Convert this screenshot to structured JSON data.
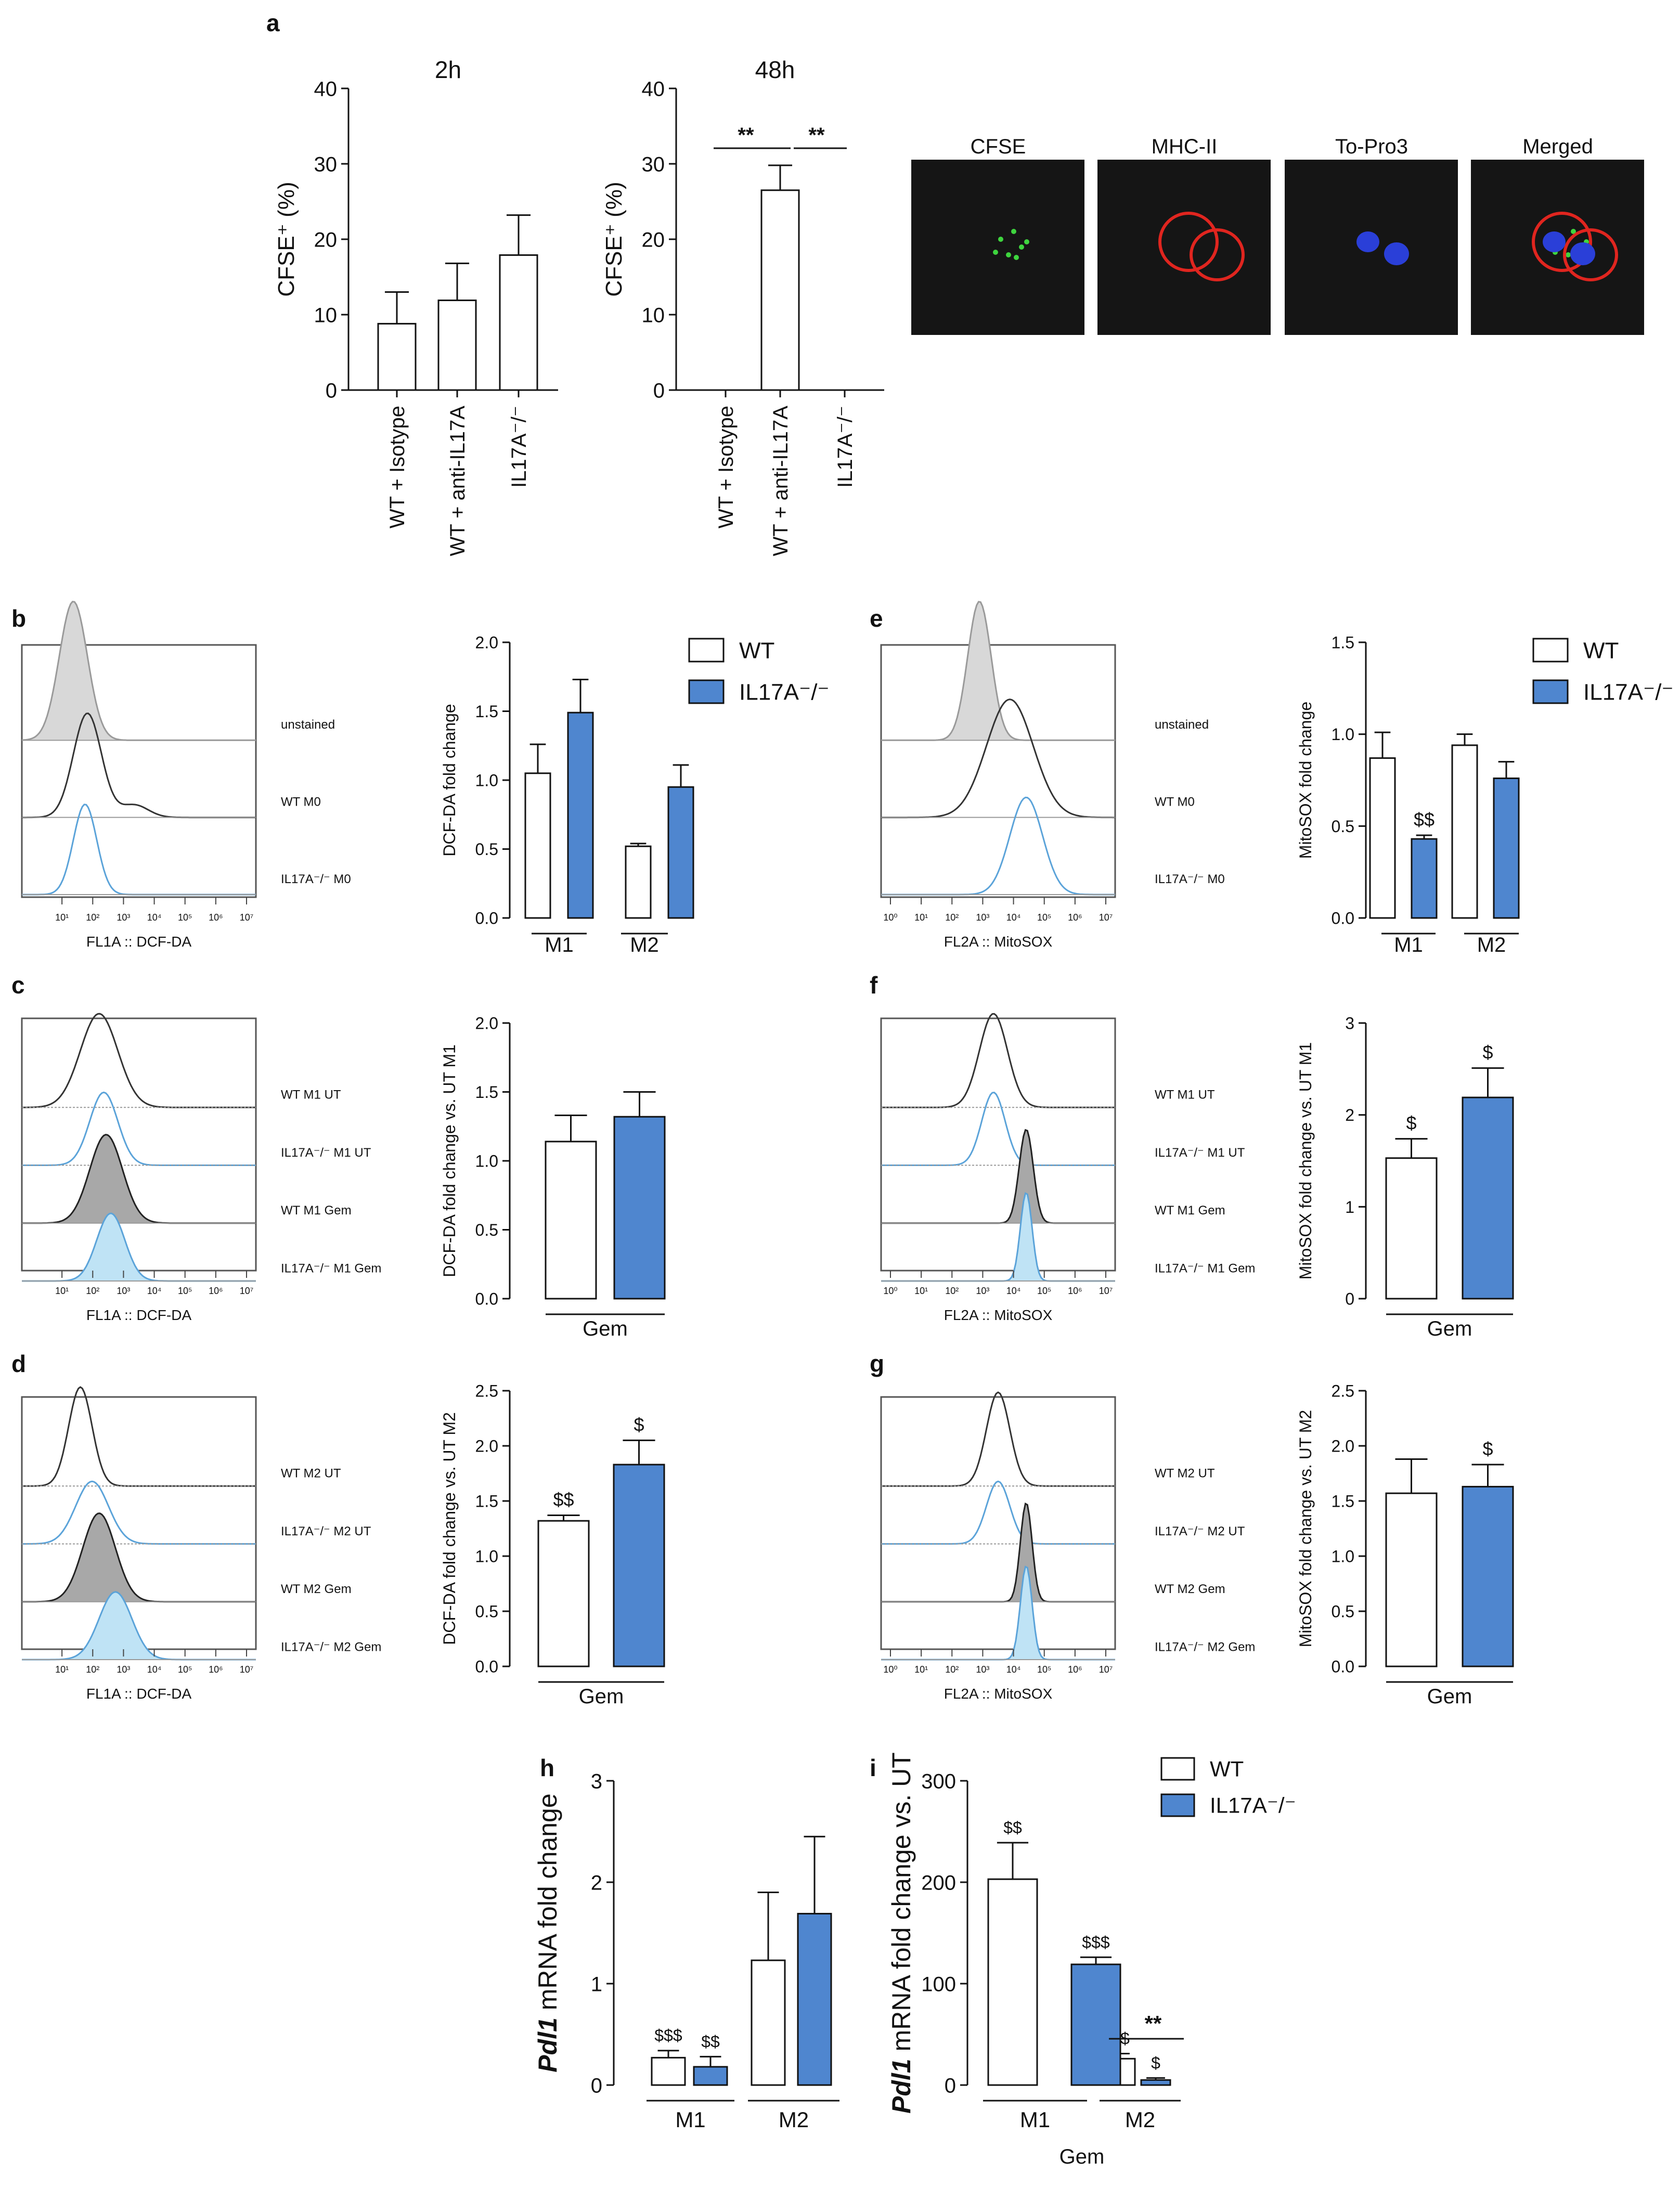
{
  "colors": {
    "wt_fill": "#ffffff",
    "ko_fill": "#4f86cf",
    "ko_line": "#5ba3d9",
    "ko_fill_light": "#bfe3f5",
    "wt_line": "#333333",
    "gray_fill": "#d8d8d8",
    "gray_line": "#9a9a9a",
    "axis": "#111111"
  },
  "legend": {
    "wt": "WT",
    "ko": "IL17A⁻/⁻"
  },
  "panels": {
    "a": "a",
    "b": "b",
    "c": "c",
    "d": "d",
    "e": "e",
    "f": "f",
    "g": "g",
    "h": "h",
    "i": "i"
  },
  "microscopy": {
    "labels": [
      "CFSE",
      "MHC-II",
      "To-Pro3",
      "Merged"
    ]
  },
  "chart_data": [
    {
      "id": "a1",
      "type": "bar",
      "title": "2h",
      "ylabel": "CFSE⁺ (%)",
      "ylim": [
        0,
        40
      ],
      "yticks": [
        "0",
        "10",
        "20",
        "30",
        "40"
      ],
      "categories": [
        "WT + Isotype",
        "WT + anti-IL17A",
        "IL17A⁻/⁻"
      ],
      "values": [
        8.8,
        11.9,
        17.9
      ],
      "errors": [
        4.2,
        4.9,
        5.3
      ]
    },
    {
      "id": "a2",
      "type": "bar",
      "title": "48h",
      "ylabel": "CFSE⁺ (%)",
      "ylim": [
        0,
        40
      ],
      "yticks": [
        "0",
        "10",
        "20",
        "30",
        "40"
      ],
      "categories": [
        "WT + Isotype",
        "WT + anti-IL17A",
        "IL17A⁻/⁻"
      ],
      "values": [
        0,
        26.5,
        0
      ],
      "errors": [
        0,
        3.3,
        0
      ],
      "annotations": [
        "**",
        "**"
      ]
    },
    {
      "id": "b",
      "type": "bar",
      "ylabel": "DCF-DA fold change",
      "ylim": [
        0,
        2
      ],
      "yticks": [
        "0.0",
        "0.5",
        "1.0",
        "1.5",
        "2.0"
      ],
      "groups": [
        "M1",
        "M2"
      ],
      "series": [
        {
          "name": "WT",
          "values": [
            1.05,
            0.52
          ],
          "errors": [
            0.21,
            0.02
          ]
        },
        {
          "name": "IL17A⁻/⁻",
          "values": [
            1.49,
            0.95
          ],
          "errors": [
            0.24,
            0.16
          ]
        }
      ],
      "marks": [
        [
          "",
          ""
        ],
        [
          "",
          ""
        ]
      ]
    },
    {
      "id": "c",
      "type": "bar",
      "ylabel": "DCF-DA fold change vs. UT M1",
      "xlabel": "Gem",
      "ylim": [
        0,
        2
      ],
      "yticks": [
        "0.0",
        "0.5",
        "1.0",
        "1.5",
        "2.0"
      ],
      "series": [
        {
          "name": "WT",
          "values": [
            1.14
          ],
          "errors": [
            0.19
          ]
        },
        {
          "name": "IL17A⁻/⁻",
          "values": [
            1.32
          ],
          "errors": [
            0.18
          ]
        }
      ],
      "marks": [
        [
          ""
        ],
        [
          ""
        ]
      ]
    },
    {
      "id": "d",
      "type": "bar",
      "ylabel": "DCF-DA fold change vs. UT M2",
      "xlabel": "Gem",
      "ylim": [
        0,
        2.5
      ],
      "yticks": [
        "0.0",
        "0.5",
        "1.0",
        "1.5",
        "2.0",
        "2.5"
      ],
      "series": [
        {
          "name": "WT",
          "values": [
            1.32
          ],
          "errors": [
            0.05
          ]
        },
        {
          "name": "IL17A⁻/⁻",
          "values": [
            1.83
          ],
          "errors": [
            0.22
          ]
        }
      ],
      "marks": [
        [
          "$$"
        ],
        [
          "$"
        ]
      ]
    },
    {
      "id": "e",
      "type": "bar",
      "ylabel": "MitoSOX fold change",
      "ylim": [
        0,
        1.5
      ],
      "yticks": [
        "0.0",
        "0.5",
        "1.0",
        "1.5"
      ],
      "groups": [
        "M1",
        "M2"
      ],
      "series": [
        {
          "name": "WT",
          "values": [
            0.87,
            0.94
          ],
          "errors": [
            0.14,
            0.06
          ]
        },
        {
          "name": "IL17A⁻/⁻",
          "values": [
            0.43,
            0.76
          ],
          "errors": [
            0.02,
            0.09
          ]
        }
      ],
      "marks": [
        [
          "",
          ""
        ],
        [
          "$$",
          ""
        ]
      ]
    },
    {
      "id": "f",
      "type": "bar",
      "ylabel": "MitoSOX fold change vs. UT M1",
      "xlabel": "Gem",
      "ylim": [
        0,
        3
      ],
      "yticks": [
        "0",
        "1",
        "2",
        "3"
      ],
      "series": [
        {
          "name": "WT",
          "values": [
            1.53
          ],
          "errors": [
            0.21
          ]
        },
        {
          "name": "IL17A⁻/⁻",
          "values": [
            2.19
          ],
          "errors": [
            0.32
          ]
        }
      ],
      "marks": [
        [
          "$"
        ],
        [
          "$"
        ]
      ]
    },
    {
      "id": "g",
      "type": "bar",
      "ylabel": "MitoSOX fold change vs. UT M2",
      "xlabel": "Gem",
      "ylim": [
        0,
        2.5
      ],
      "yticks": [
        "0.0",
        "0.5",
        "1.0",
        "1.5",
        "2.0",
        "2.5"
      ],
      "series": [
        {
          "name": "WT",
          "values": [
            1.57
          ],
          "errors": [
            0.31
          ]
        },
        {
          "name": "IL17A⁻/⁻",
          "values": [
            1.63
          ],
          "errors": [
            0.2
          ]
        }
      ],
      "marks": [
        [
          ""
        ],
        [
          "$"
        ]
      ]
    },
    {
      "id": "h",
      "type": "bar",
      "ylabel": "mRNA fold change",
      "ylabel_gene": "Pdl1",
      "ylim": [
        0,
        3
      ],
      "yticks": [
        "0",
        "1",
        "2",
        "3"
      ],
      "groups": [
        "M1",
        "M2"
      ],
      "series": [
        {
          "name": "WT",
          "values": [
            0.27,
            1.23
          ],
          "errors": [
            0.07,
            0.67
          ]
        },
        {
          "name": "IL17A⁻/⁻",
          "values": [
            0.18,
            1.69
          ],
          "errors": [
            0.1,
            0.76
          ]
        }
      ],
      "marks": [
        [
          "$$$",
          ""
        ],
        [
          "$$",
          ""
        ]
      ]
    },
    {
      "id": "i",
      "type": "bar",
      "ylabel": "mRNA fold change vs. UT",
      "ylabel_gene": "Pdl1",
      "xlabel": "Gem",
      "ylim": [
        0,
        300
      ],
      "yticks": [
        "0",
        "100",
        "200",
        "300"
      ],
      "groups": [
        "M1",
        "M2"
      ],
      "series": [
        {
          "name": "WT",
          "values": [
            203,
            26
          ],
          "errors": [
            36,
            5
          ]
        },
        {
          "name": "IL17A⁻/⁻",
          "values": [
            119,
            5
          ],
          "errors": [
            7,
            2
          ]
        }
      ],
      "marks": [
        [
          "$$",
          "$$"
        ],
        [
          "$$$",
          "$"
        ]
      ],
      "annotation": "**"
    },
    {
      "id": "hist_b",
      "type": "histogram",
      "xlabel": "FL1A :: DCF-DA",
      "traces": [
        "unstained",
        "WT M0",
        "IL17A⁻/⁻ M0"
      ]
    },
    {
      "id": "hist_c",
      "type": "histogram",
      "xlabel": "FL1A :: DCF-DA",
      "traces": [
        "WT M1 UT",
        "IL17A⁻/⁻ M1 UT",
        "WT M1 Gem",
        "IL17A⁻/⁻ M1 Gem"
      ]
    },
    {
      "id": "hist_d",
      "type": "histogram",
      "xlabel": "FL1A :: DCF-DA",
      "traces": [
        "WT M2 UT",
        "IL17A⁻/⁻ M2 UT",
        "WT M2 Gem",
        "IL17A⁻/⁻ M2 Gem"
      ]
    },
    {
      "id": "hist_e",
      "type": "histogram",
      "xlabel": "FL2A :: MitoSOX",
      "traces": [
        "unstained",
        "WT M0",
        "IL17A⁻/⁻ M0"
      ]
    },
    {
      "id": "hist_f",
      "type": "histogram",
      "xlabel": "FL2A :: MitoSOX",
      "traces": [
        "WT M1 UT",
        "IL17A⁻/⁻ M1 UT",
        "WT M1 Gem",
        "IL17A⁻/⁻ M1 Gem"
      ]
    },
    {
      "id": "hist_g",
      "type": "histogram",
      "xlabel": "FL2A :: MitoSOX",
      "traces": [
        "WT M2 UT",
        "IL17A⁻/⁻ M2 UT",
        "WT M2 Gem",
        "IL17A⁻/⁻ M2 Gem"
      ]
    }
  ],
  "flow_axis_ticks": [
    "10⁰",
    "10¹",
    "10²",
    "10³",
    "10⁴",
    "10⁵",
    "10⁶",
    "10⁷"
  ]
}
